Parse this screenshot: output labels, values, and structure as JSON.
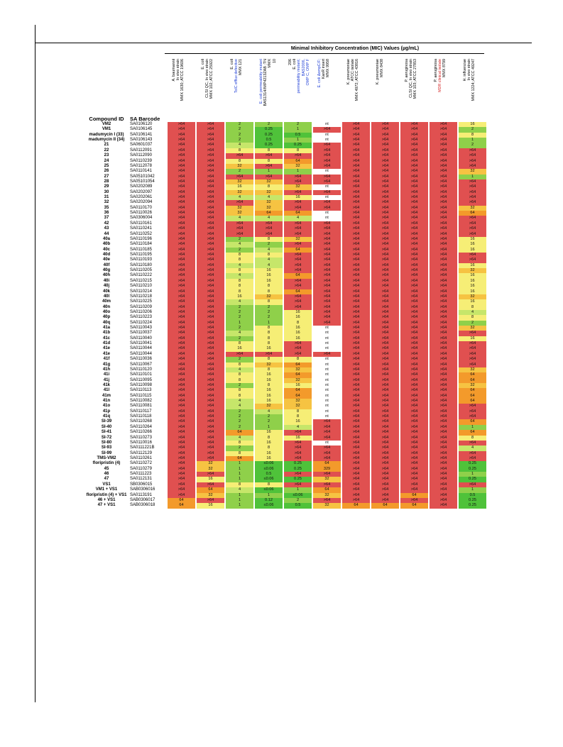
{
  "title": "Minimal Inhibitory Concentration (MIC) Values (µg/mL)",
  "headers": {
    "compound_id": "Compound ID",
    "sa_barcode": "SA Barcode"
  },
  "columns": [
    {
      "lines": [
        "A. baumannii",
        "In vivo strain",
        "MMX 1630; ATCC 19606"
      ],
      "color": ""
    },
    {
      "lines": [
        "E. coli",
        "CLSI QC, In vivo strain",
        "MMX 102; ATCC 25922"
      ],
      "color": ""
    },
    {
      "lines": [
        "E. coli",
        "TolC efflux defective",
        "MMX 121"
      ],
      "color": "mixed-blue"
    },
    {
      "lines": [
        "E. coli permeability mutant",
        "BAS1314/IMP4213ZAB ;TN",
        "MMX",
        "10"
      ],
      "color": "mixed-blue"
    },
    {
      "lines": [
        "206",
        "E. coli",
        "permeability mutant;",
        "BAS2006,",
        "OMP C, OMP F"
      ],
      "color": "mixed-blue"
    },
    {
      "lines": [
        "E. coli ΔompC/F;",
        "KanR insert",
        "MMX 9958"
      ],
      "color": "mixed-blue"
    },
    {
      "lines": [
        "K. pneumoniae",
        "ATCC isolate",
        "MMX 4972; ATCC 43816"
      ],
      "color": ""
    },
    {
      "lines": [
        "K. pneumoniae",
        "MMX 8438"
      ],
      "color": ""
    },
    {
      "lines": [
        "P. aeruginosa",
        "CLSI QC, In vivo strain",
        "MMX 103; ATCC 27853"
      ],
      "color": ""
    },
    {
      "lines": [
        "P. aeruginosa",
        "MDR clinical isolate",
        "MMX 8799"
      ],
      "color": "mixed-red"
    },
    {
      "lines": [
        "H. influenzae",
        "In vivo strain",
        "MMX 1224; ATCC 49247"
      ],
      "color": ""
    }
  ],
  "colors": {
    "red": "#e05050",
    "orange": "#f39a2b",
    "amber": "#f6c342",
    "yellow": "#f6ee76",
    "lime": "#c6e66a",
    "green": "#8fd04a",
    "bright_green": "#4fc23a",
    "white": "#ffffff"
  },
  "rows": [
    {
      "id": "VM2",
      "sa": "SA0106120",
      "v": [
        ">64",
        ">64",
        "2",
        "2",
        "2",
        "nt",
        ">64",
        ">64",
        ">64",
        ">64",
        "16"
      ]
    },
    {
      "id": "VM1",
      "sa": "SA0106145",
      "v": [
        ">64",
        ">64",
        "2",
        "0.25",
        "1",
        ">64",
        ">64",
        ">64",
        ">64",
        ">64",
        "2"
      ]
    },
    {
      "id": "madumycin I (33)",
      "sa": "SA0106141",
      "v": [
        ">64",
        ">64",
        "2",
        "0.25",
        "0.5",
        "nt",
        ">64",
        ">64",
        ">64",
        ">64",
        "8"
      ]
    },
    {
      "id": "madumycin II (34)",
      "sa": "SA0106143",
      "v": [
        ">64",
        ">64",
        "2",
        "0.5",
        "1",
        "nt",
        ">64",
        ">64",
        ">64",
        ">64",
        "1"
      ]
    },
    {
      "id": "21",
      "sa": "SA0601037",
      "v": [
        ">64",
        ">64",
        "4",
        "0.25",
        "0.25",
        ">64",
        ">64",
        ">64",
        ">64",
        ">64",
        "2"
      ]
    },
    {
      "id": "22",
      "sa": "SA0112091",
      "v": [
        ">64",
        ">64",
        "8",
        "8",
        "8",
        ">64",
        ">64",
        ">64",
        ">64",
        ">64",
        ">64"
      ]
    },
    {
      "id": "23",
      "sa": "SA0112090",
      "v": [
        ">64",
        ">64",
        ">64",
        ">64",
        ">64",
        ">64",
        ">64",
        ">64",
        ">64",
        ">64",
        ">64"
      ]
    },
    {
      "id": "24",
      "sa": "SA0110239",
      "v": [
        ">64",
        ">64",
        "8",
        "8",
        "64",
        ">64",
        ">64",
        ">64",
        ">64",
        ">64",
        ">64"
      ]
    },
    {
      "id": "25",
      "sa": "SA0112078",
      "v": [
        ">64",
        ">64",
        "32",
        ">64",
        "32",
        ">64",
        ">64",
        ">64",
        ">64",
        ">64",
        ">64"
      ]
    },
    {
      "id": "26",
      "sa": "SA0110141",
      "v": [
        ">64",
        ">64",
        "2",
        "1",
        "1",
        "nt",
        ">64",
        ">64",
        ">64",
        ">64",
        "32"
      ]
    },
    {
      "id": "27",
      "sa": "SA05101042",
      "v": [
        ">64",
        ">64",
        ">64",
        ">64",
        ">64",
        ">64",
        ">64",
        ">64",
        ">64",
        ">64",
        "1"
      ]
    },
    {
      "id": "28",
      "sa": "SA05101054",
      "v": [
        ">64",
        ">64",
        "32",
        "32",
        ">64",
        ">64",
        ">64",
        ">64",
        ">64",
        ">64",
        ">64"
      ]
    },
    {
      "id": "29",
      "sa": "SA0202089",
      "v": [
        ">64",
        ">64",
        "16",
        "8",
        "32",
        "nt",
        ">64",
        ">64",
        ">64",
        ">64",
        ">64"
      ]
    },
    {
      "id": "30",
      "sa": "SA0202097",
      "v": [
        ">64",
        ">64",
        "32",
        "32",
        ">64",
        ">64",
        ">64",
        ">64",
        ">64",
        ">64",
        ">64"
      ]
    },
    {
      "id": "31",
      "sa": "SA0202061",
      "v": [
        ">64",
        ">64",
        "4",
        "4",
        "16",
        "nt",
        ">64",
        ">64",
        ">64",
        ">64",
        ">64"
      ]
    },
    {
      "id": "32",
      "sa": "SA0202094",
      "v": [
        ">64",
        ">64",
        ">64",
        "32",
        ">64",
        ">64",
        ">64",
        ">64",
        ">64",
        ">64",
        ">64"
      ]
    },
    {
      "id": "35",
      "sa": "SA0110170",
      "v": [
        ">64",
        ">64",
        "32",
        "32",
        ">64",
        ">64",
        ">64",
        ">64",
        ">64",
        ">64",
        "32"
      ]
    },
    {
      "id": "36",
      "sa": "SA0110026",
      "v": [
        ">64",
        ">64",
        "32",
        "64",
        "64",
        "nt",
        ">64",
        ">64",
        ">64",
        ">64",
        "64"
      ]
    },
    {
      "id": "37",
      "sa": "SA0306004",
      "v": [
        ">64",
        ">64",
        "4",
        "4",
        "4",
        "nt",
        ">64",
        ">64",
        ">64",
        ">64",
        ">64"
      ]
    },
    {
      "id": "42",
      "sa": "SA0110161",
      "v": [
        ">64",
        ">64",
        ">64",
        ">64",
        ">64",
        ">64",
        ">64",
        ">64",
        ">64",
        ">64",
        ">64"
      ]
    },
    {
      "id": "43",
      "sa": "SA0110241",
      "v": [
        ">64",
        ">64",
        ">64",
        ">64",
        ">64",
        ">64",
        ">64",
        ">64",
        ">64",
        ">64",
        ">64"
      ]
    },
    {
      "id": "44",
      "sa": "SA0110252",
      "v": [
        ">64",
        ">64",
        ">64",
        ">64",
        ">64",
        ">64",
        ">64",
        ">64",
        ">64",
        ">64",
        ">64"
      ]
    },
    {
      "id": "40a",
      "sa": "SA0110196",
      "v": [
        ">64",
        ">64",
        "2",
        "8",
        "32",
        ">64",
        ">64",
        ">64",
        ">64",
        ">64",
        "16"
      ]
    },
    {
      "id": "40b",
      "sa": "SA0110184",
      "v": [
        ">64",
        ">64",
        "4",
        "2",
        ">64",
        ">64",
        ">64",
        ">64",
        ">64",
        ">64",
        "16"
      ]
    },
    {
      "id": "40c",
      "sa": "SA0110185",
      "v": [
        ">64",
        ">64",
        "2",
        "4",
        "64",
        ">64",
        ">64",
        ">64",
        ">64",
        ">64",
        "16"
      ]
    },
    {
      "id": "40d",
      "sa": "SA0110195",
      "v": [
        ">64",
        ">64",
        "8",
        "8",
        ">64",
        ">64",
        ">64",
        ">64",
        ">64",
        ">64",
        ">64"
      ]
    },
    {
      "id": "40e",
      "sa": "SA0110193",
      "v": [
        ">64",
        ">64",
        "8",
        "4",
        ">64",
        ">64",
        ">64",
        ">64",
        ">64",
        ">64",
        ">64"
      ]
    },
    {
      "id": "40f",
      "sa": "SA0110180",
      "v": [
        ">64",
        ">64",
        "4",
        "4",
        ">64",
        ">64",
        ">64",
        ">64",
        ">64",
        ">64",
        "16"
      ]
    },
    {
      "id": "40g",
      "sa": "SA0110205",
      "v": [
        ">64",
        ">64",
        "8",
        "16",
        ">64",
        ">64",
        ">64",
        ">64",
        ">64",
        ">64",
        "32"
      ]
    },
    {
      "id": "40h",
      "sa": "SA0110222",
      "v": [
        ">64",
        ">64",
        "4",
        "16",
        "64",
        ">64",
        ">64",
        ">64",
        ">64",
        ">64",
        "16"
      ]
    },
    {
      "id": "40i",
      "sa": "SA0110215",
      "v": [
        ">64",
        ">64",
        "8",
        "16",
        ">64",
        ">64",
        ">64",
        ">64",
        ">64",
        ">64",
        "16"
      ]
    },
    {
      "id": "40j",
      "sa": "SA0110210",
      "v": [
        ">64",
        ">64",
        "8",
        "8",
        ">64",
        ">64",
        ">64",
        ">64",
        ">64",
        ">64",
        "16"
      ]
    },
    {
      "id": "40k",
      "sa": "SA0110214",
      "v": [
        ">64",
        ">64",
        "8",
        "8",
        "64",
        ">64",
        ">64",
        ">64",
        ">64",
        ">64",
        "16"
      ]
    },
    {
      "id": "40l",
      "sa": "SA0110218",
      "v": [
        ">64",
        ">64",
        "16",
        "32",
        ">64",
        ">64",
        ">64",
        ">64",
        ">64",
        ">64",
        "32"
      ]
    },
    {
      "id": "40m",
      "sa": "SA0110225",
      "v": [
        ">64",
        ">64",
        "4",
        "8",
        ">64",
        ">64",
        ">64",
        ">64",
        ">64",
        ">64",
        "16"
      ]
    },
    {
      "id": "40n",
      "sa": "SA0110209",
      "v": [
        ">64",
        ">64",
        "2",
        "2",
        ">64",
        ">64",
        ">64",
        ">64",
        ">64",
        ">64",
        "8"
      ]
    },
    {
      "id": "40o",
      "sa": "SA0110206",
      "v": [
        ">64",
        ">64",
        "2",
        "2",
        "16",
        ">64",
        ">64",
        ">64",
        ">64",
        ">64",
        "4"
      ]
    },
    {
      "id": "40p",
      "sa": "SA0110223",
      "v": [
        ">64",
        ">64",
        "2",
        "2",
        "16",
        ">64",
        ">64",
        ">64",
        ">64",
        ">64",
        "8"
      ]
    },
    {
      "id": "40q",
      "sa": "SA0110224",
      "v": [
        ">64",
        ">64",
        "1",
        "1",
        "8",
        ">64",
        ">64",
        ">64",
        ">64",
        ">64",
        "2"
      ]
    },
    {
      "id": "41a",
      "sa": "SA0110043",
      "v": [
        ">64",
        ">64",
        "2",
        "8",
        "16",
        "nt",
        ">64",
        ">64",
        ">64",
        ">64",
        "32"
      ]
    },
    {
      "id": "41b",
      "sa": "SA0110037",
      "v": [
        ">64",
        ">64",
        "4",
        "8",
        "16",
        "nt",
        ">64",
        ">64",
        ">64",
        ">64",
        ">64"
      ]
    },
    {
      "id": "41c",
      "sa": "SA0110040",
      "v": [
        ">64",
        ">64",
        "2",
        "8",
        "16",
        "nt",
        ">64",
        ">64",
        ">64",
        ">64",
        "16"
      ]
    },
    {
      "id": "41d",
      "sa": "SA0110041",
      "v": [
        ">64",
        ">64",
        "8",
        "8",
        ">64",
        "nt",
        ">64",
        ">64",
        ">64",
        ">64",
        ">64"
      ]
    },
    {
      "id": "41e",
      "sa": "SA0110044",
      "v": [
        ">64",
        ">64",
        "16",
        "16",
        ">64",
        "nt",
        ">64",
        ">64",
        ">64",
        ">64",
        ">64"
      ]
    },
    {
      "id": "41e",
      "sa": "SA0110044",
      "v": [
        ">64",
        ">64",
        ">64",
        ">64",
        ">64",
        ">64",
        ">64",
        ">64",
        ">64",
        ">64",
        ">64"
      ]
    },
    {
      "id": "41f",
      "sa": "SA0110036",
      "v": [
        ">64",
        ">64",
        "2",
        "8",
        "8",
        "nt",
        ">64",
        ">64",
        ">64",
        ">64",
        ">64"
      ]
    },
    {
      "id": "41g",
      "sa": "SA0110067",
      "v": [
        ">64",
        ">64",
        "8",
        "32",
        "64",
        "nt",
        ">64",
        ">64",
        ">64",
        ">64",
        ">64"
      ]
    },
    {
      "id": "41h",
      "sa": "SA0110120",
      "v": [
        ">64",
        ">64",
        "4",
        "8",
        "32",
        "nt",
        ">64",
        ">64",
        ">64",
        ">64",
        "32"
      ]
    },
    {
      "id": "41i",
      "sa": "SA0110101",
      "v": [
        ">64",
        ">64",
        "8",
        "16",
        "64",
        "nt",
        ">64",
        ">64",
        ">64",
        ">64",
        "64"
      ]
    },
    {
      "id": "41j",
      "sa": "SA0110095",
      "v": [
        ">64",
        ">64",
        "8",
        "16",
        "32",
        "nt",
        ">64",
        ">64",
        ">64",
        ">64",
        "64"
      ]
    },
    {
      "id": "41k",
      "sa": "SA0110098",
      "v": [
        ">64",
        ">64",
        "2",
        "8",
        "16",
        "nt",
        ">64",
        ">64",
        ">64",
        ">64",
        "32"
      ]
    },
    {
      "id": "41l",
      "sa": "SA0110113",
      "v": [
        ">64",
        ">64",
        "8",
        "16",
        "64",
        "nt",
        ">64",
        ">64",
        ">64",
        ">64",
        "64"
      ]
    },
    {
      "id": "41m",
      "sa": "SA0110115",
      "v": [
        ">64",
        ">64",
        "8",
        "16",
        "64",
        "nt",
        ">64",
        ">64",
        ">64",
        ">64",
        "64"
      ]
    },
    {
      "id": "41n",
      "sa": "SA0110082",
      "v": [
        ">64",
        ">64",
        "4",
        "16",
        "32",
        "nt",
        ">64",
        ">64",
        ">64",
        ">64",
        "64"
      ]
    },
    {
      "id": "41o",
      "sa": "SA0110081",
      "v": [
        ">64",
        ">64",
        "4",
        "32",
        "32",
        "nt",
        ">64",
        ">64",
        ">64",
        ">64",
        ">64"
      ]
    },
    {
      "id": "41p",
      "sa": "SA0110117",
      "v": [
        ">64",
        ">64",
        "2",
        "4",
        "8",
        "nt",
        ">64",
        ">64",
        ">64",
        ">64",
        ">64"
      ]
    },
    {
      "id": "41q",
      "sa": "SA0110118",
      "v": [
        ">64",
        ">64",
        "2",
        "2",
        "8",
        "nt",
        ">64",
        ">64",
        ">64",
        ">64",
        ">64"
      ]
    },
    {
      "id": "SI-39",
      "sa": "SA0110268",
      "v": [
        ">64",
        ">64",
        "2",
        "2",
        "16",
        ">64",
        ">64",
        ">64",
        ">64",
        ">64",
        "64"
      ]
    },
    {
      "id": "SI-40",
      "sa": "SA0110264",
      "v": [
        ">64",
        ">64",
        "2",
        "1",
        "4",
        ">64",
        ">64",
        ">64",
        ">64",
        ">64",
        "1"
      ]
    },
    {
      "id": "SI-41",
      "sa": "SA0110266",
      "v": [
        ">64",
        ">64",
        "64",
        "16",
        ">64",
        ">64",
        ">64",
        ">64",
        ">64",
        ">64",
        "64"
      ]
    },
    {
      "id": "SI-72",
      "sa": "SA0110273",
      "v": [
        ">64",
        ">64",
        "4",
        "8",
        "16",
        ">64",
        ">64",
        ">64",
        ">64",
        ">64",
        "8"
      ]
    },
    {
      "id": "SI-80",
      "sa": "SA0110016",
      "v": [
        ">64",
        ">64",
        "8",
        "16",
        ">64",
        "nt",
        ">64",
        ">64",
        ">64",
        ">64",
        ">64"
      ]
    },
    {
      "id": "SI-93",
      "sa": "SA0111221B",
      "v": [
        ">64",
        ">64",
        "2",
        "8",
        ">64",
        ">64",
        ">64",
        ">64",
        ">64",
        ">64",
        "4"
      ]
    },
    {
      "id": "SI-99",
      "sa": "SA0112129",
      "v": [
        ">64",
        ">64",
        "8",
        "16",
        ">64",
        ">64",
        ">64",
        ">64",
        ">64",
        ">64",
        ">64"
      ]
    },
    {
      "id": "TMS-VM2",
      "sa": "SA0110261",
      "v": [
        ">64",
        ">64",
        "64",
        "16",
        ">64",
        ">64",
        ">64",
        ">64",
        ">64",
        ">64",
        ">64"
      ]
    },
    {
      "id": "floripristin (4)",
      "sa": "SA0110272",
      "v": [
        ">64",
        "32",
        "1",
        "≤0.06",
        "0.25",
        "64",
        ">64",
        ">64",
        ">64",
        ">64",
        "0.25"
      ]
    },
    {
      "id": "45",
      "sa": "SA0110279",
      "v": [
        ">64",
        "32",
        "1",
        "≤0.06",
        "0.25",
        "329",
        ">64",
        ">64",
        ">64",
        ">64",
        "0.25"
      ]
    },
    {
      "id": "46",
      "sa": "SA0111223",
      "v": [
        ">64",
        ">64",
        "1",
        "0.5",
        ">64",
        ">64",
        ">64",
        ">64",
        ">64",
        ">64",
        "1"
      ]
    },
    {
      "id": "47",
      "sa": "SA0112131",
      "v": [
        ">64",
        "16",
        "1",
        "≤0.06",
        "0.25",
        "32",
        ">64",
        ">64",
        ">64",
        ">64",
        "0.25"
      ]
    },
    {
      "id": "VS1",
      "sa": "SB0306015",
      "v": [
        ">64",
        ">64",
        "8",
        "8",
        ">64",
        ">64",
        ">64",
        ">64",
        ">64",
        ">64",
        ">64"
      ]
    },
    {
      "id": "VM1 + VS1",
      "sa": "SAB0306016",
      "v": [
        ">64",
        "64",
        "4",
        "≤0.06",
        "1",
        "64",
        ">64",
        ">64",
        ">64",
        ">64",
        "1"
      ]
    },
    {
      "id": "floripristin (4) + VS1",
      "sa": "SA0113191",
      "v": [
        ">64",
        "32",
        "1",
        "1",
        "≤0.06",
        "32",
        ">64",
        ">64",
        "64",
        ">64",
        "0.5"
      ]
    },
    {
      "id": "46 + VS1",
      "sa": "SAB0306017",
      "v": [
        "64",
        ">64",
        "1",
        "0.12",
        "2",
        ">64",
        ">64",
        ">64",
        ">64",
        ">64",
        "0.25"
      ]
    },
    {
      "id": "47 + VS1",
      "sa": "SAB0306018",
      "v": [
        "64",
        "16",
        "1",
        "≤0.06",
        "0.5",
        "32",
        "64",
        "64",
        "64",
        ">64",
        "0.25"
      ]
    }
  ]
}
